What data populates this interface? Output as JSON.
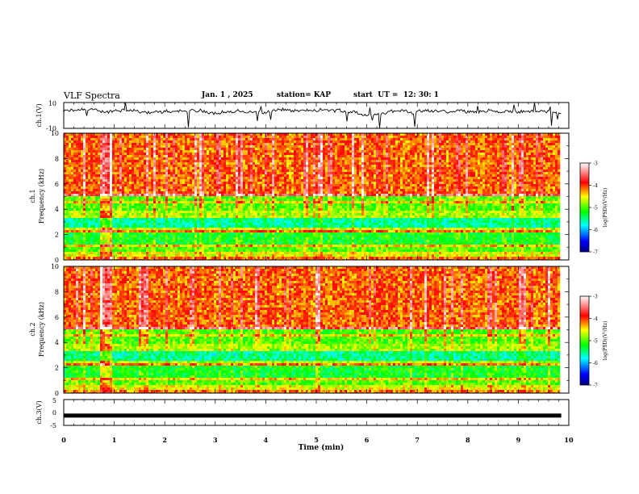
{
  "header": {
    "title": "VLF Spectra",
    "date": "Jan. 1 , 2025",
    "station": "station= KAP",
    "start": "start  UT =  12: 30: 1"
  },
  "chart_data": [
    {
      "type": "line",
      "name": "ch1-waveform",
      "ylabel": "ch.1(V)",
      "ylim": [
        -10,
        10
      ],
      "yticks": [
        "10",
        "-10"
      ],
      "xlim": [
        0,
        10
      ],
      "description_values": {
        "baseline": 3,
        "noise": "spiky"
      }
    },
    {
      "type": "heatmap",
      "name": "ch1-spectrogram",
      "ylabel": "ch.1",
      "ylabel2": "Frequency (kHz)",
      "ylim": [
        0,
        10
      ],
      "yticks": [
        "10",
        "8",
        "6",
        "4",
        "2",
        "0"
      ],
      "xlim": [
        0,
        10
      ],
      "data_end_min": 9.85,
      "colorbar": {
        "label": "log(PSD)(V²/Hz)",
        "range": [
          -7,
          -3
        ],
        "ticks": [
          "-3",
          "-4",
          "-5",
          "-6",
          "-7"
        ]
      }
    },
    {
      "type": "heatmap",
      "name": "ch2-spectrogram",
      "ylabel": "ch.2",
      "ylabel2": "Frequency (kHz)",
      "ylim": [
        0,
        10
      ],
      "yticks": [
        "10",
        "8",
        "6",
        "4",
        "2",
        "0"
      ],
      "xlim": [
        0,
        10
      ],
      "data_end_min": 9.85,
      "colorbar": {
        "label": "log(PSD)(V²/Hz)",
        "range": [
          -7,
          -3
        ],
        "ticks": [
          "-3",
          "-4",
          "-5",
          "-6",
          "-7"
        ]
      }
    },
    {
      "type": "line",
      "name": "ch3-waveform",
      "ylabel": "ch.3(V)",
      "ylim": [
        -5,
        5
      ],
      "yticks": [
        "5",
        "0",
        "-5"
      ],
      "xlim": [
        0,
        10
      ],
      "level": -1.2,
      "xlabel": "Time (min)",
      "xticks": [
        "0",
        "1",
        "2",
        "3",
        "4",
        "5",
        "6",
        "7",
        "8",
        "9",
        "10"
      ]
    }
  ]
}
